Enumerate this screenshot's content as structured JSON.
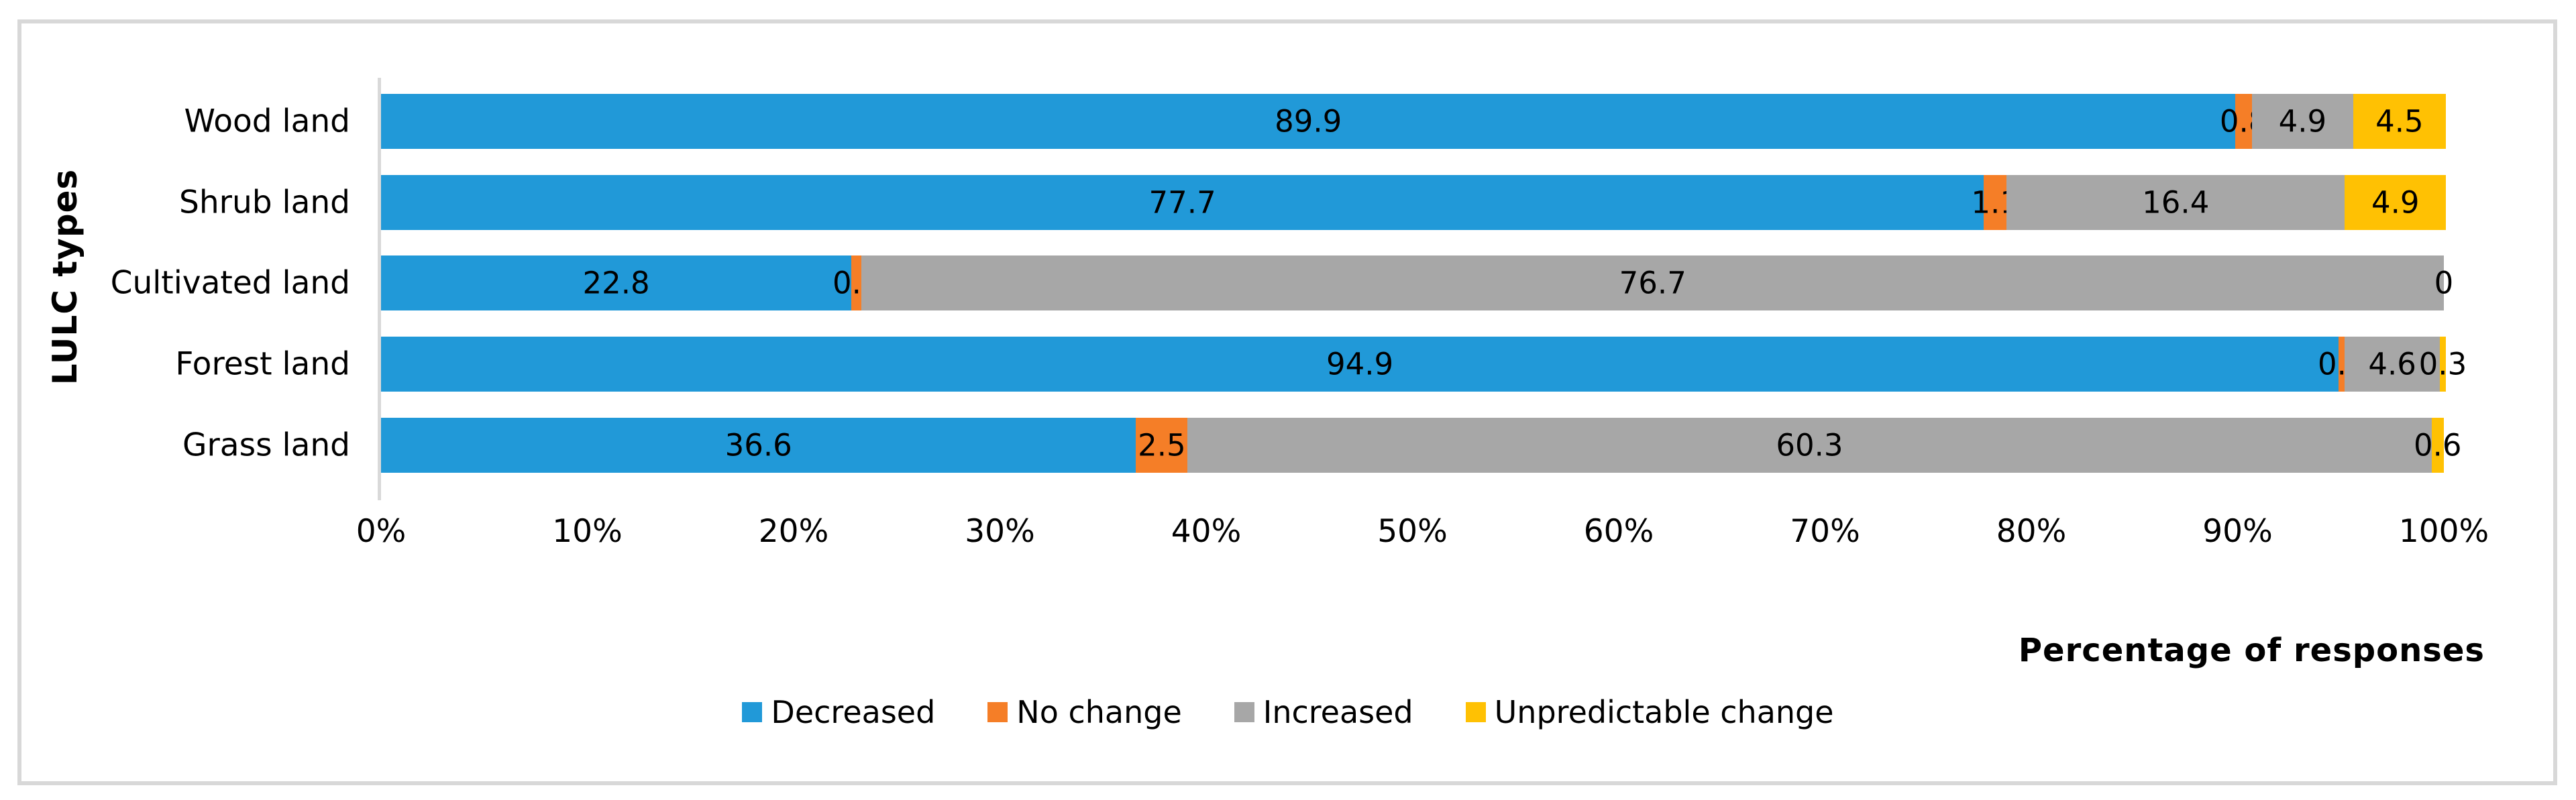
{
  "chart_data": {
    "type": "bar",
    "variant": "horizontal-stacked",
    "title": "",
    "categories": [
      "Wood land",
      "Shrub land",
      "Cultivated land",
      "Forest land",
      "Grass land"
    ],
    "series": [
      {
        "name": "Decreased",
        "color": "#2199D8",
        "values": [
          89.9,
          77.7,
          22.8,
          94.9,
          36.6
        ]
      },
      {
        "name": "No change",
        "color": "#F57E27",
        "values": [
          0.8,
          1.1,
          0.5,
          0.3,
          2.5
        ]
      },
      {
        "name": "Increased",
        "color": "#A7A7A7",
        "values": [
          4.9,
          16.4,
          76.7,
          4.6,
          60.3
        ]
      },
      {
        "name": "Unpredictable change",
        "color": "#FFC103",
        "values": [
          4.5,
          4.9,
          0,
          0.3,
          0.6
        ]
      }
    ],
    "value_labels": [
      [
        "89.9",
        "0.8",
        "4.9",
        "4.5"
      ],
      [
        "77.7",
        "1.1",
        "16.4",
        "4.9"
      ],
      [
        "22.8",
        "0.5",
        "76.7",
        "0"
      ],
      [
        "94.9",
        "0.3",
        "4.6",
        "0.3"
      ],
      [
        "36.6",
        "2.5",
        "60.3",
        "0.6"
      ]
    ],
    "xlabel": "Percentage of responses",
    "ylabel": "LULC types",
    "x_ticks": [
      "0%",
      "10%",
      "20%",
      "30%",
      "40%",
      "50%",
      "60%",
      "70%",
      "80%",
      "90%",
      "100%"
    ],
    "xlim": [
      0,
      100
    ],
    "grid": "off",
    "legend_position": "bottom",
    "axis_line_color": "#D9D9D9",
    "frame_border_color": "#D8D8D8"
  }
}
